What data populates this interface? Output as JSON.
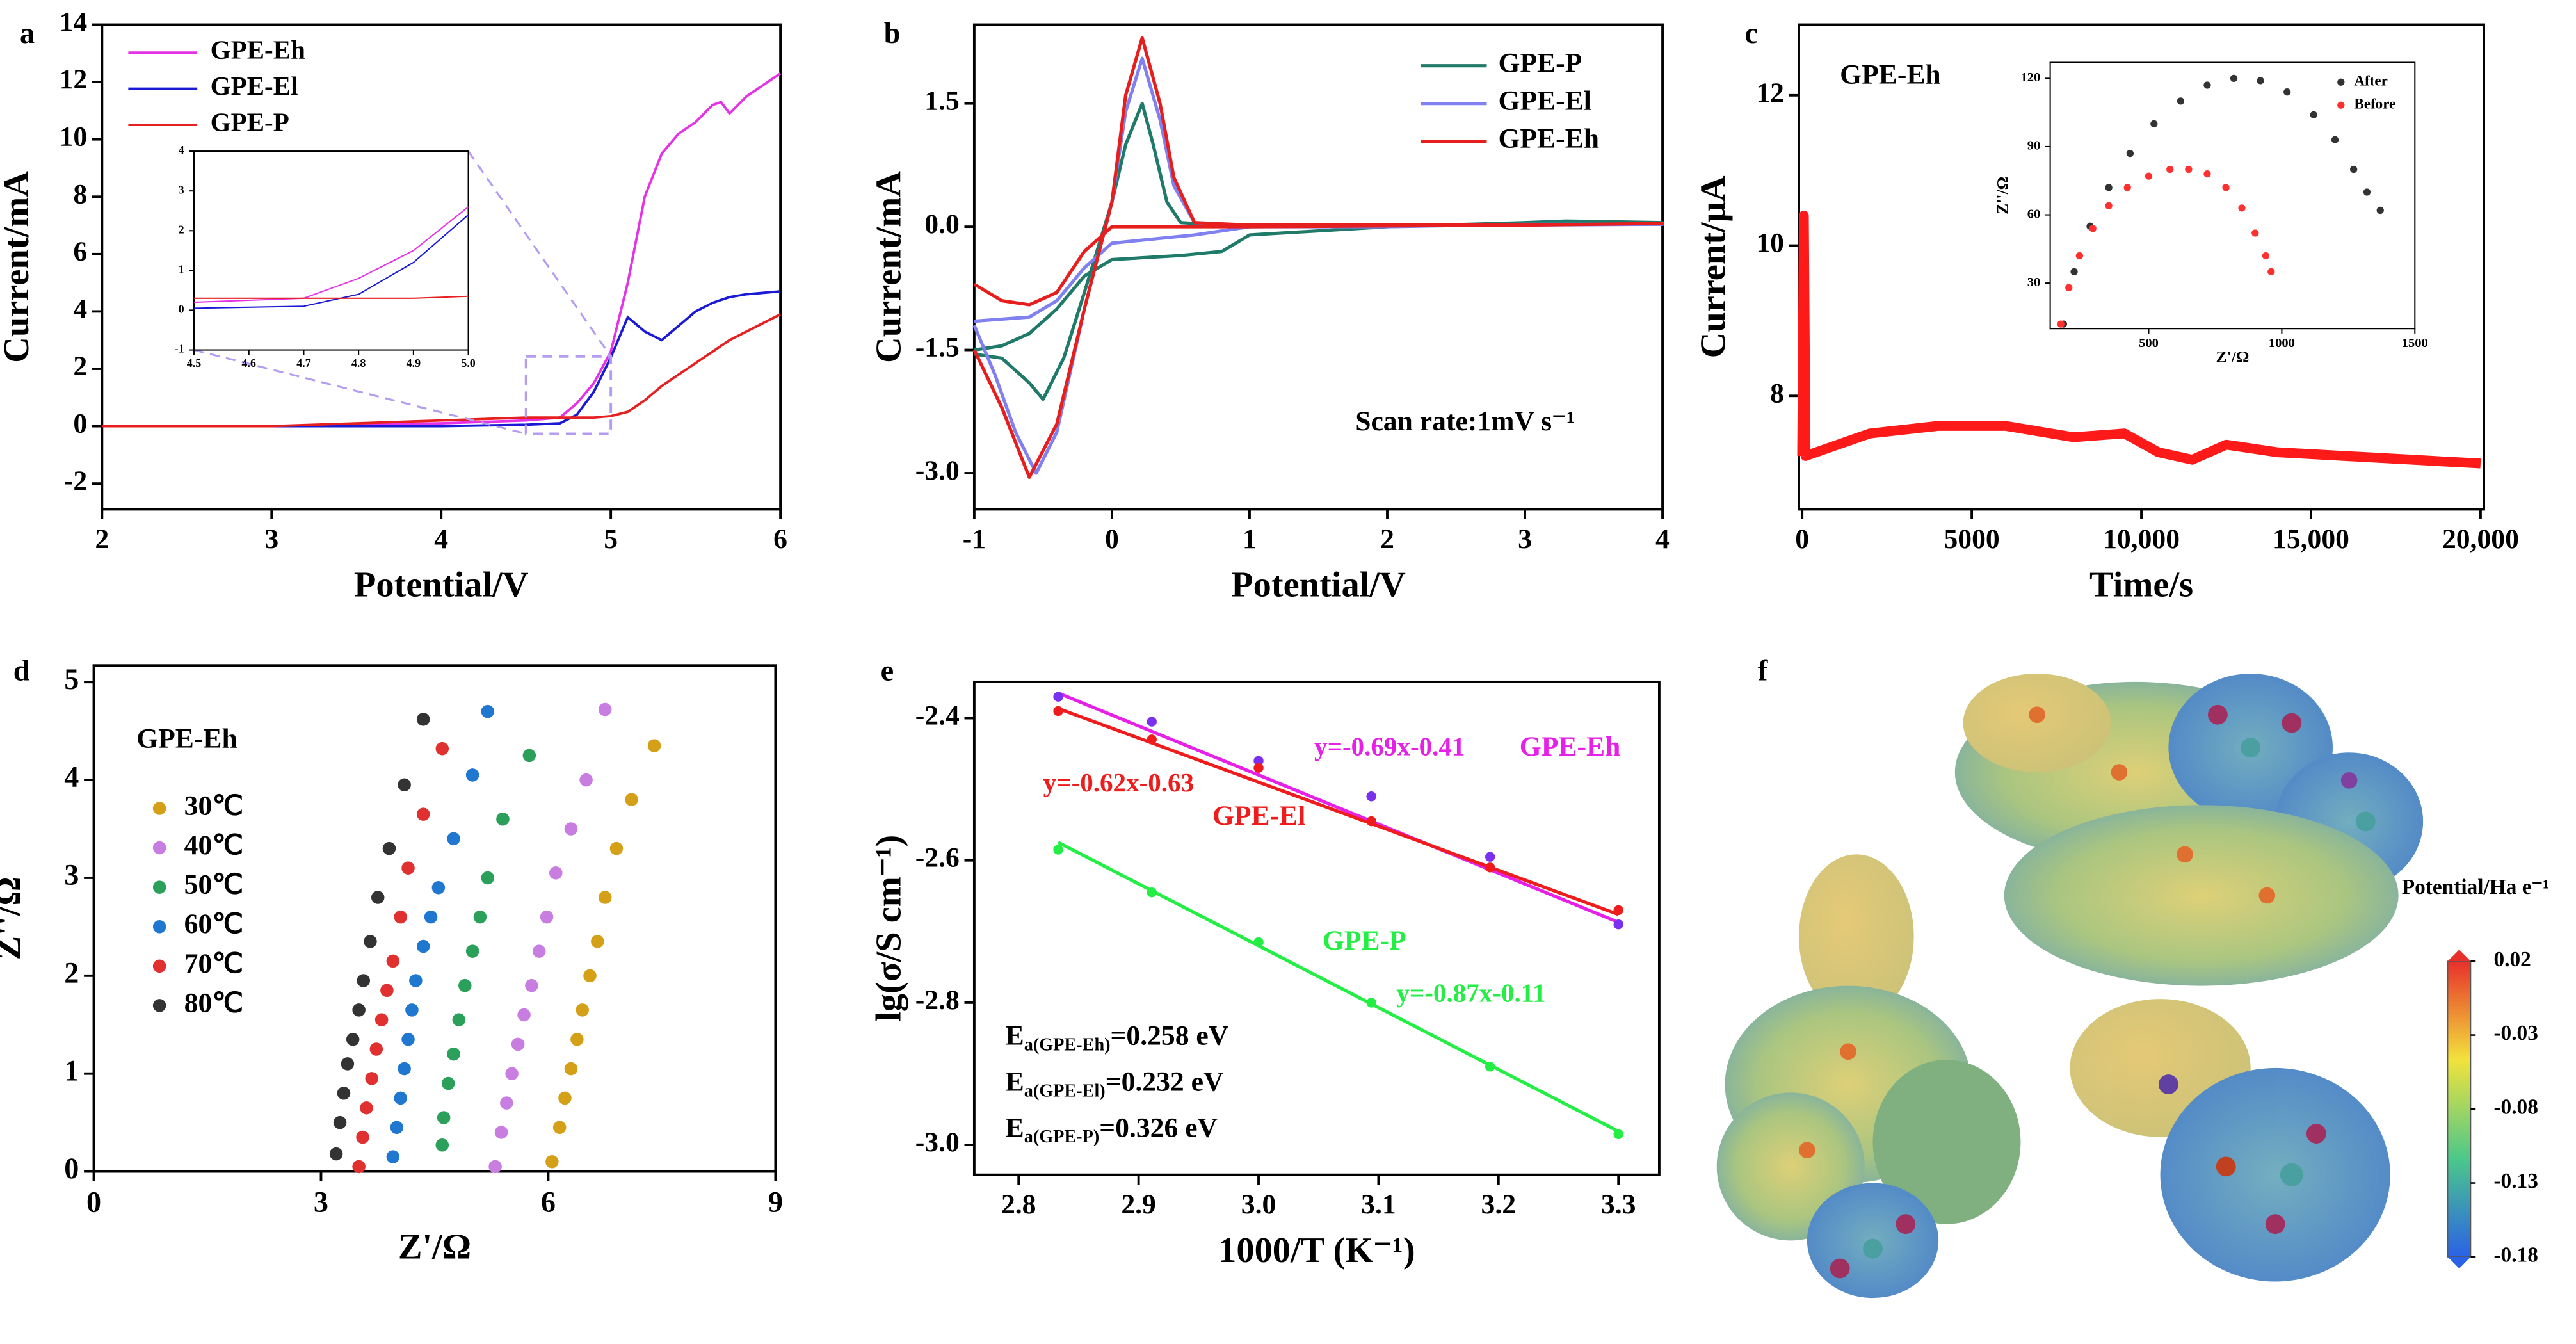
{
  "chart_data": [
    {
      "type": "line",
      "label": "a",
      "xlabel": "Potential/V",
      "ylabel": "Current/mA",
      "xlim": [
        2,
        6
      ],
      "ylim": [
        -2.9,
        14
      ],
      "xticks": [
        2,
        3,
        4,
        5,
        6
      ],
      "yticks": [
        -2,
        0,
        2,
        4,
        6,
        8,
        10,
        12,
        14
      ],
      "legend": "upper left",
      "x": [
        2,
        3,
        4,
        4.5,
        4.7,
        4.8,
        4.9,
        5.0,
        5.1,
        5.2,
        5.3,
        5.4,
        5.5,
        5.6,
        5.65,
        5.7,
        5.8,
        6.0
      ],
      "series": [
        {
          "name": "GPE-Eh",
          "color": "#e632e6",
          "values": [
            0,
            0,
            0.1,
            0.2,
            0.3,
            0.8,
            1.5,
            2.6,
            5,
            8,
            9.5,
            10.2,
            10.6,
            11.2,
            11.3,
            10.9,
            11.5,
            12.3
          ]
        },
        {
          "name": "GPE-El",
          "color": "#1a1ad6",
          "values": [
            0,
            0,
            0,
            0.05,
            0.1,
            0.4,
            1.2,
            2.4,
            3.8,
            3.3,
            3.0,
            3.5,
            4.0,
            4.3,
            4.4,
            4.5,
            4.6,
            4.7
          ]
        },
        {
          "name": "GPE-P",
          "color": "#e62020",
          "values": [
            0,
            0,
            0.2,
            0.3,
            0.3,
            0.3,
            0.3,
            0.35,
            0.5,
            0.9,
            1.4,
            1.8,
            2.2,
            2.6,
            2.8,
            3.0,
            3.3,
            3.9
          ]
        }
      ],
      "inset": {
        "xlim": [
          4.5,
          5
        ],
        "ylim": [
          -1,
          4
        ],
        "xticks": [
          4.5,
          4.6,
          4.7,
          4.8,
          4.9,
          {
            "value": 5,
            "label": "5.0"
          }
        ],
        "yticks": [
          -1,
          0,
          1,
          2,
          3,
          4
        ]
      }
    },
    {
      "type": "line",
      "label": "b",
      "xlabel": "Potential/V",
      "ylabel": "Current/mA",
      "annotation": "Scan rate:1mV s⁻¹",
      "xlim": [
        -1,
        4
      ],
      "ylim": [
        -3.44,
        2.46
      ],
      "xticks": [
        -1,
        0,
        1,
        2,
        3,
        4
      ],
      "yticks": [
        {
          "value": -3,
          "label": "-3.0"
        },
        -1.5,
        {
          "value": 0,
          "label": "0.0"
        },
        1.5
      ],
      "legend": "upper right",
      "series": [
        {
          "name": "GPE-P",
          "color": "#1f7a6a",
          "x": [
            -1,
            -0.8,
            -0.6,
            -0.4,
            -0.2,
            0,
            0.5,
            0.8,
            1,
            2,
            3,
            3.3,
            4,
            3,
            1,
            0.5,
            0.4,
            0.3,
            0.22,
            0.1,
            0,
            -0.2,
            -0.35,
            -0.5,
            -0.6,
            -0.8,
            -1
          ],
          "values": [
            -1.5,
            -1.45,
            -1.3,
            -1.0,
            -0.6,
            -0.4,
            -0.35,
            -0.3,
            -0.1,
            0,
            0.05,
            0.07,
            0.05,
            0.02,
            0,
            0.05,
            0.3,
            1,
            1.5,
            1.0,
            0.3,
            -0.8,
            -1.6,
            -2.1,
            -1.9,
            -1.6,
            -1.55
          ]
        },
        {
          "name": "GPE-El",
          "color": "#8080f0",
          "x": [
            -1,
            -0.6,
            -0.4,
            -0.2,
            0,
            0.3,
            0.6,
            1,
            2,
            3,
            4,
            3,
            1,
            0.6,
            0.45,
            0.35,
            0.22,
            0.1,
            0,
            -0.2,
            -0.4,
            -0.55,
            -0.7,
            -0.85,
            -1
          ],
          "values": [
            -1.15,
            -1.1,
            -0.9,
            -0.5,
            -0.2,
            -0.15,
            -0.1,
            0,
            0,
            0.03,
            0.03,
            0.02,
            0.01,
            0.05,
            0.5,
            1.3,
            2.05,
            1.4,
            0.3,
            -1.0,
            -2.5,
            -3.0,
            -2.5,
            -1.8,
            -1.2
          ]
        },
        {
          "name": "GPE-Eh",
          "color": "#e61e1e",
          "x": [
            -1,
            -0.8,
            -0.6,
            -0.4,
            -0.2,
            0,
            0.5,
            1,
            2,
            3,
            4,
            3,
            1,
            0.6,
            0.45,
            0.35,
            0.22,
            0.1,
            0,
            -0.2,
            -0.4,
            -0.6,
            -0.8,
            -1
          ],
          "values": [
            -0.7,
            -0.9,
            -0.95,
            -0.8,
            -0.3,
            0,
            0,
            0,
            0.01,
            0.02,
            0.04,
            0.02,
            0.02,
            0.05,
            0.6,
            1.5,
            2.3,
            1.6,
            0.3,
            -1.0,
            -2.4,
            -3.05,
            -2.2,
            -1.5
          ]
        }
      ]
    },
    {
      "type": "line",
      "label": "c",
      "xlabel": "Time/s",
      "ylabel": "Current/μA",
      "annotation": "GPE-Eh",
      "xlim": [
        -97,
        20097
      ],
      "ylim": [
        6.49,
        12.94
      ],
      "xticks": [
        0,
        5000,
        {
          "value": 10000,
          "label": "10,000"
        },
        {
          "value": 15000,
          "label": "15,000"
        },
        {
          "value": 20000,
          "label": "20,000"
        }
      ],
      "yticks": [
        8,
        10,
        12
      ],
      "x": [
        0,
        50,
        100,
        2000,
        4000,
        6000,
        8000,
        9500,
        10500,
        11500,
        12500,
        14000,
        16000,
        18000,
        20000
      ],
      "series": [
        {
          "color": "#ff1a1a",
          "values": [
            7.2,
            10.4,
            7.2,
            7.5,
            7.6,
            7.6,
            7.45,
            7.5,
            7.25,
            7.15,
            7.35,
            7.25,
            7.2,
            7.15,
            7.1
          ]
        }
      ],
      "inset": {
        "type": "scatter",
        "xlabel": "Z'/Ω",
        "ylabel": "Z''/Ω",
        "xlim": [
          130,
          1500
        ],
        "ylim": [
          10,
          127
        ],
        "xticks": [
          500,
          1000,
          1500
        ],
        "yticks": [
          30,
          60,
          90,
          120
        ],
        "legend": "upper right",
        "series": [
          {
            "name": "After",
            "color": "#333333",
            "x": [
              180,
              220,
              280,
              350,
              430,
              520,
              620,
              720,
              820,
              920,
              1020,
              1120,
              1200,
              1270,
              1320,
              1370
            ],
            "values": [
              12,
              35,
              55,
              72,
              87,
              100,
              110,
              117,
              120,
              119,
              114,
              104,
              93,
              80,
              70,
              62
            ]
          },
          {
            "name": "Before",
            "color": "#ff3030",
            "x": [
              170,
              200,
              240,
              290,
              350,
              420,
              500,
              580,
              650,
              720,
              790,
              850,
              900,
              940,
              960
            ],
            "values": [
              12,
              28,
              42,
              54,
              64,
              72,
              77,
              80,
              80,
              78,
              72,
              63,
              52,
              42,
              35
            ]
          }
        ]
      }
    },
    {
      "type": "scatter",
      "label": "d",
      "xlabel": "Z'/Ω",
      "ylabel": "Z''/Ω",
      "annotation": "GPE-Eh",
      "xlim": [
        0,
        9
      ],
      "ylim": [
        0,
        5.17
      ],
      "xticks": [
        0,
        3,
        6,
        9
      ],
      "yticks": [
        0,
        1,
        2,
        3,
        4,
        5
      ],
      "legend": "upper left",
      "series": [
        {
          "name": "30℃",
          "color": "#d4a017",
          "x": [
            6.05,
            6.15,
            6.22,
            6.3,
            6.38,
            6.45,
            6.55,
            6.65,
            6.75,
            6.9,
            7.1,
            7.4
          ],
          "values": [
            0.1,
            0.45,
            0.75,
            1.05,
            1.35,
            1.65,
            2.0,
            2.35,
            2.8,
            3.3,
            3.8,
            4.35
          ]
        },
        {
          "name": "40℃",
          "color": "#c77ee0",
          "x": [
            5.3,
            5.38,
            5.45,
            5.52,
            5.6,
            5.68,
            5.78,
            5.88,
            5.98,
            6.1,
            6.3,
            6.5,
            6.75
          ],
          "values": [
            0.05,
            0.4,
            0.7,
            1.0,
            1.3,
            1.6,
            1.9,
            2.25,
            2.6,
            3.05,
            3.5,
            4.0,
            4.72
          ]
        },
        {
          "name": "50℃",
          "color": "#2aa05a",
          "x": [
            4.6,
            4.62,
            4.68,
            4.75,
            4.82,
            4.9,
            5.0,
            5.1,
            5.2,
            5.4,
            5.75
          ],
          "values": [
            0.27,
            0.55,
            0.9,
            1.2,
            1.55,
            1.9,
            2.25,
            2.6,
            3.0,
            3.6,
            4.25
          ]
        },
        {
          "name": "60℃",
          "color": "#1f77d0",
          "x": [
            3.95,
            4.0,
            4.05,
            4.1,
            4.15,
            4.2,
            4.25,
            4.35,
            4.45,
            4.55,
            4.75,
            5.0,
            5.2
          ],
          "values": [
            0.15,
            0.45,
            0.75,
            1.05,
            1.35,
            1.65,
            1.95,
            2.3,
            2.6,
            2.9,
            3.4,
            4.05,
            4.7
          ]
        },
        {
          "name": "70℃",
          "color": "#e03030",
          "x": [
            3.5,
            3.55,
            3.6,
            3.67,
            3.73,
            3.8,
            3.87,
            3.95,
            4.05,
            4.15,
            4.35,
            4.6
          ],
          "values": [
            0.05,
            0.35,
            0.65,
            0.95,
            1.25,
            1.55,
            1.85,
            2.15,
            2.6,
            3.1,
            3.65,
            4.32
          ]
        },
        {
          "name": "80℃",
          "color": "#333333",
          "x": [
            3.2,
            3.25,
            3.3,
            3.35,
            3.42,
            3.5,
            3.56,
            3.65,
            3.75,
            3.9,
            4.1,
            4.35
          ],
          "values": [
            0.18,
            0.5,
            0.8,
            1.1,
            1.35,
            1.65,
            1.95,
            2.35,
            2.8,
            3.3,
            3.95,
            4.62
          ]
        }
      ]
    },
    {
      "type": "scatter",
      "label": "e",
      "xlabel": "1000/T (K⁻¹)",
      "ylabel": "lg(σ/S cm⁻¹)",
      "xlim": [
        2.763,
        3.334
      ],
      "ylim": [
        -3.042,
        -2.349
      ],
      "xticks": [
        2.8,
        2.9,
        {
          "value": 3,
          "label": "3.0"
        },
        3.1,
        3.2,
        3.3
      ],
      "yticks": [
        {
          "value": -3,
          "label": "-3.0"
        },
        -2.8,
        -2.6,
        -2.4
      ],
      "series": [
        {
          "name": "GPE-Eh",
          "color": "#e620e6",
          "marker_color": "#7b30f0",
          "x": [
            2.833,
            2.911,
            3.0,
            3.094,
            3.193,
            3.3
          ],
          "values": [
            -2.37,
            -2.405,
            -2.46,
            -2.51,
            -2.595,
            -2.69
          ],
          "fit": {
            "slope": -0.69,
            "intercept": -0.41,
            "label": "y=-0.69x-0.41"
          }
        },
        {
          "name": "GPE-El",
          "color": "#ee1c1c",
          "marker_color": "#ee1c1c",
          "x": [
            2.833,
            2.911,
            3.0,
            3.094,
            3.193,
            3.3
          ],
          "values": [
            -2.39,
            -2.43,
            -2.47,
            -2.545,
            -2.61,
            -2.67
          ],
          "fit": {
            "slope": -0.62,
            "intercept": -0.63,
            "label": "y=-0.62x-0.63"
          }
        },
        {
          "name": "GPE-P",
          "color": "#22ee44",
          "marker_color": "#22ee44",
          "x": [
            2.833,
            2.911,
            3.0,
            3.094,
            3.193,
            3.3
          ],
          "values": [
            -2.585,
            -2.645,
            -2.715,
            -2.8,
            -2.89,
            -2.985
          ],
          "fit": {
            "slope": -0.87,
            "intercept": -0.11,
            "label": "y=-0.87x-0.11"
          }
        }
      ],
      "annotations": [
        {
          "symbol": "E",
          "sub": "a(GPE-Eh)",
          "text": "=0.258 eV"
        },
        {
          "symbol": "E",
          "sub": "a(GPE-El)",
          "text": "=0.232 eV"
        },
        {
          "symbol": "E",
          "sub": "a(GPE-P)",
          "text": "=0.326 eV"
        }
      ]
    },
    {
      "type": "colorbar",
      "label": "f",
      "title": "Potential/Ha e⁻¹",
      "clim": [
        -0.18,
        0.02
      ],
      "ticks": [
        0.02,
        -0.03,
        -0.08,
        -0.13,
        -0.18
      ],
      "colors": [
        "#e8302a",
        "#f2e23c",
        "#4cc88a",
        "#2a62e6"
      ]
    }
  ]
}
